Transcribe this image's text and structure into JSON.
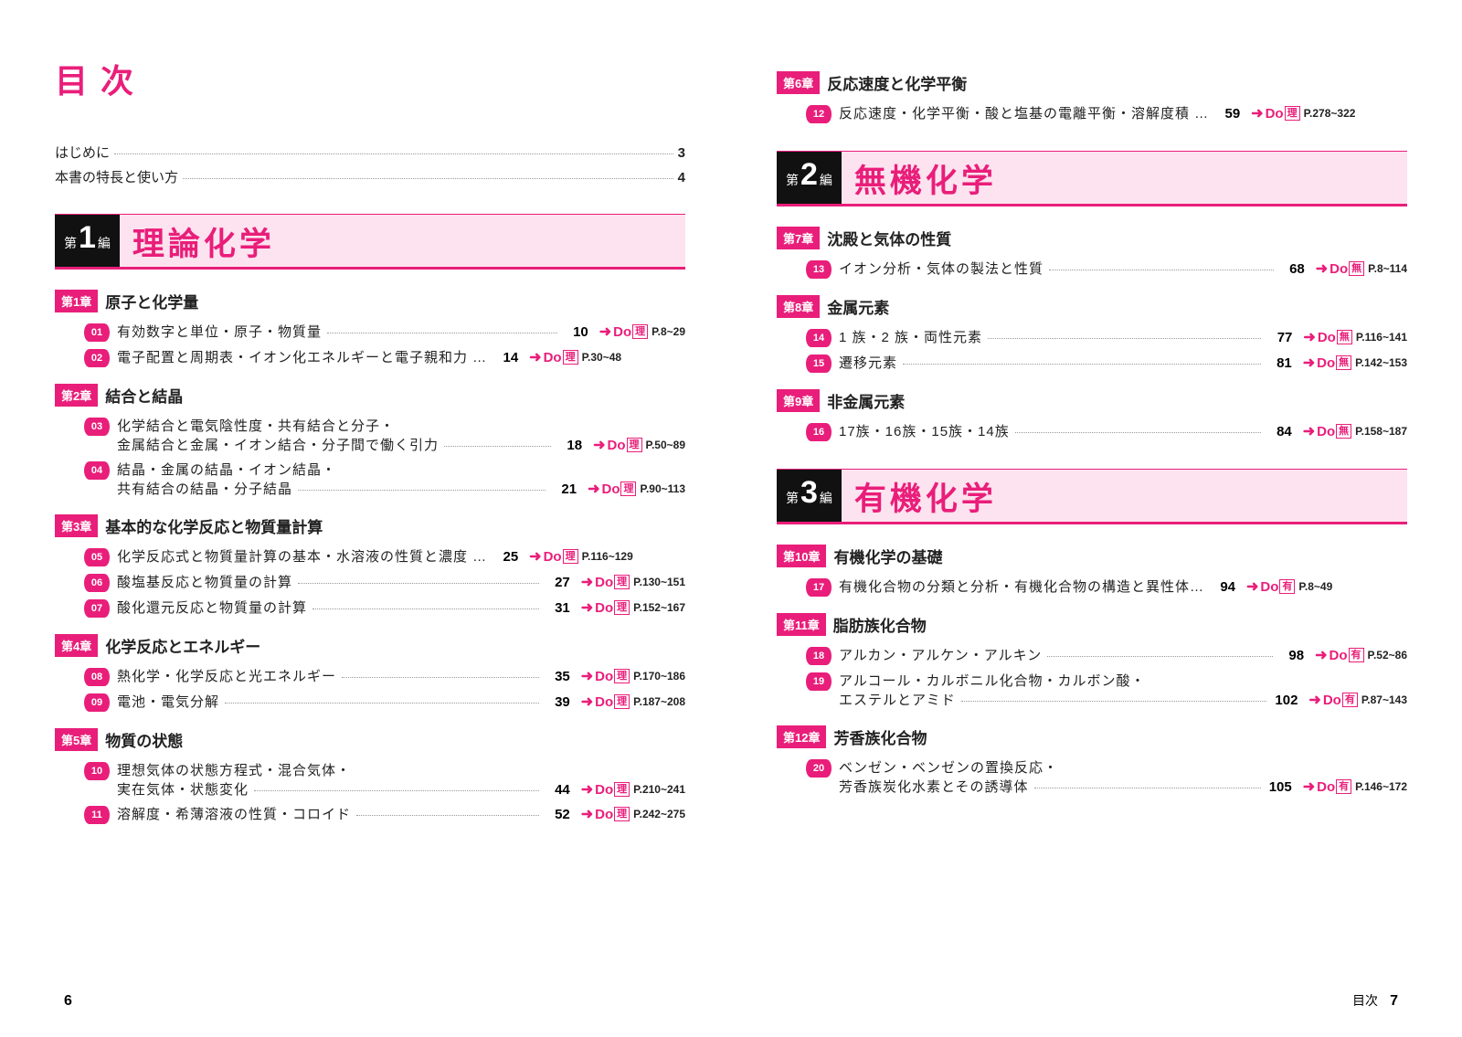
{
  "colors": {
    "accent": "#e91e7a",
    "part_bg": "#fde3ef",
    "text": "#222222"
  },
  "main_title": "目次",
  "intro": [
    {
      "label": "はじめに",
      "page": "3"
    },
    {
      "label": "本書の特長と使い方",
      "page": "4"
    }
  ],
  "parts": [
    {
      "prefix": "第",
      "num": "1",
      "suffix": "編",
      "title": "理論化学",
      "chapters": [
        {
          "badge": "第1章",
          "title": "原子と化学量",
          "items": [
            {
              "num": "01",
              "lines": [
                "有効数字と単位・原子・物質量"
              ],
              "page": "10",
              "ref_tag": "理",
              "ref_pages": "P.8~29"
            },
            {
              "num": "02",
              "lines": [
                "電子配置と周期表・イオン化エネルギーと電子親和力 …"
              ],
              "page": "14",
              "no_leader": true,
              "ref_tag": "理",
              "ref_pages": "P.30~48"
            }
          ]
        },
        {
          "badge": "第2章",
          "title": "結合と結晶",
          "items": [
            {
              "num": "03",
              "lines": [
                "化学結合と電気陰性度・共有結合と分子・",
                "金属結合と金属・イオン結合・分子間で働く引力"
              ],
              "page": "18",
              "ref_tag": "理",
              "ref_pages": "P.50~89"
            },
            {
              "num": "04",
              "lines": [
                "結晶・金属の結晶・イオン結晶・",
                "共有結合の結晶・分子結晶"
              ],
              "page": "21",
              "ref_tag": "理",
              "ref_pages": "P.90~113"
            }
          ]
        },
        {
          "badge": "第3章",
          "title": "基本的な化学反応と物質量計算",
          "items": [
            {
              "num": "05",
              "lines": [
                "化学反応式と物質量計算の基本・水溶液の性質と濃度 …"
              ],
              "page": "25",
              "no_leader": true,
              "ref_tag": "理",
              "ref_pages": "P.116~129"
            },
            {
              "num": "06",
              "lines": [
                "酸塩基反応と物質量の計算"
              ],
              "page": "27",
              "ref_tag": "理",
              "ref_pages": "P.130~151"
            },
            {
              "num": "07",
              "lines": [
                "酸化還元反応と物質量の計算"
              ],
              "page": "31",
              "ref_tag": "理",
              "ref_pages": "P.152~167"
            }
          ]
        },
        {
          "badge": "第4章",
          "title": "化学反応とエネルギー",
          "items": [
            {
              "num": "08",
              "lines": [
                "熱化学・化学反応と光エネルギー"
              ],
              "page": "35",
              "ref_tag": "理",
              "ref_pages": "P.170~186"
            },
            {
              "num": "09",
              "lines": [
                "電池・電気分解"
              ],
              "page": "39",
              "ref_tag": "理",
              "ref_pages": "P.187~208"
            }
          ]
        },
        {
          "badge": "第5章",
          "title": "物質の状態",
          "items": [
            {
              "num": "10",
              "lines": [
                "理想気体の状態方程式・混合気体・",
                "実在気体・状態変化"
              ],
              "page": "44",
              "ref_tag": "理",
              "ref_pages": "P.210~241"
            },
            {
              "num": "11",
              "lines": [
                "溶解度・希薄溶液の性質・コロイド"
              ],
              "page": "52",
              "ref_tag": "理",
              "ref_pages": "P.242~275"
            }
          ]
        }
      ]
    }
  ],
  "right_chapters_pre": [
    {
      "badge": "第6章",
      "title": "反応速度と化学平衡",
      "items": [
        {
          "num": "12",
          "lines": [
            "反応速度・化学平衡・酸と塩基の電離平衡・溶解度積 …"
          ],
          "page": "59",
          "no_leader": true,
          "ref_tag": "理",
          "ref_pages": "P.278~322"
        }
      ]
    }
  ],
  "right_parts": [
    {
      "prefix": "第",
      "num": "2",
      "suffix": "編",
      "title": "無機化学",
      "chapters": [
        {
          "badge": "第7章",
          "title": "沈殿と気体の性質",
          "items": [
            {
              "num": "13",
              "lines": [
                "イオン分析・気体の製法と性質"
              ],
              "page": "68",
              "ref_tag": "無",
              "ref_pages": "P.8~114"
            }
          ]
        },
        {
          "badge": "第8章",
          "title": "金属元素",
          "items": [
            {
              "num": "14",
              "lines": [
                "1 族・2 族・両性元素"
              ],
              "page": "77",
              "ref_tag": "無",
              "ref_pages": "P.116~141"
            },
            {
              "num": "15",
              "lines": [
                "遷移元素"
              ],
              "page": "81",
              "ref_tag": "無",
              "ref_pages": "P.142~153"
            }
          ]
        },
        {
          "badge": "第9章",
          "title": "非金属元素",
          "items": [
            {
              "num": "16",
              "lines": [
                "17族・16族・15族・14族"
              ],
              "page": "84",
              "ref_tag": "無",
              "ref_pages": "P.158~187"
            }
          ]
        }
      ]
    },
    {
      "prefix": "第",
      "num": "3",
      "suffix": "編",
      "title": "有機化学",
      "chapters": [
        {
          "badge": "第10章",
          "title": "有機化学の基礎",
          "items": [
            {
              "num": "17",
              "lines": [
                "有機化合物の分類と分析・有機化合物の構造と異性体…"
              ],
              "page": "94",
              "no_leader": true,
              "ref_tag": "有",
              "ref_pages": "P.8~49"
            }
          ]
        },
        {
          "badge": "第11章",
          "title": "脂肪族化合物",
          "items": [
            {
              "num": "18",
              "lines": [
                "アルカン・アルケン・アルキン"
              ],
              "page": "98",
              "ref_tag": "有",
              "ref_pages": "P.52~86"
            },
            {
              "num": "19",
              "lines": [
                "アルコール・カルボニル化合物・カルボン酸・",
                "エステルとアミド"
              ],
              "page": "102",
              "ref_tag": "有",
              "ref_pages": "P.87~143"
            }
          ]
        },
        {
          "badge": "第12章",
          "title": "芳香族化合物",
          "items": [
            {
              "num": "20",
              "lines": [
                "ベンゼン・ベンゼンの置換反応・",
                "芳香族炭化水素とその誘導体"
              ],
              "page": "105",
              "ref_tag": "有",
              "ref_pages": "P.146~172"
            }
          ]
        }
      ]
    }
  ],
  "page_left": "6",
  "page_right": "7",
  "page_right_label": "目次",
  "ref_do": "Do"
}
